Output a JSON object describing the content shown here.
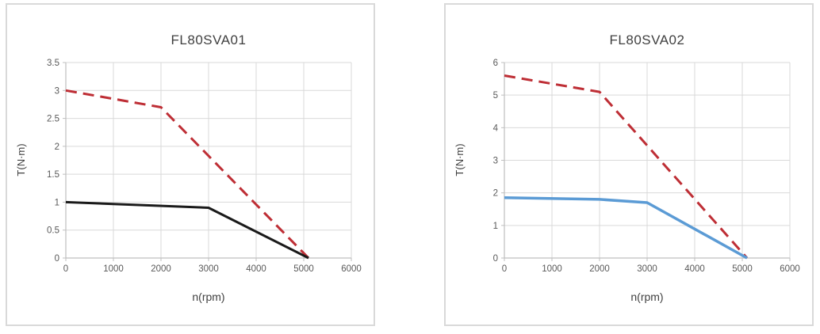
{
  "colors": {
    "background": "#ffffff",
    "card_border": "#d9d9d9",
    "grid": "#d9d9d9",
    "axis": "#bfbfbf",
    "tick_text": "#595959",
    "label_text": "#404040",
    "red_dashed": "#be2e35",
    "black_solid": "#1a1a1a",
    "blue_solid": "#5b9bd5"
  },
  "chart_data": [
    {
      "type": "line",
      "title": "FL80SVA01",
      "xlabel": "n(rpm)",
      "ylabel": "T(N·m)",
      "xlim": [
        0,
        6000
      ],
      "ylim": [
        0,
        3.5
      ],
      "xticks": [
        0,
        1000,
        2000,
        3000,
        4000,
        5000,
        6000
      ],
      "yticks": [
        0,
        0.5,
        1,
        1.5,
        2,
        2.5,
        3,
        3.5
      ],
      "grid": true,
      "legend": "none",
      "series": [
        {
          "name": "red-dashed-curve",
          "style": "dashed",
          "color": "#be2e35",
          "width": 3,
          "points": [
            [
              0,
              3.0
            ],
            [
              2000,
              2.7
            ],
            [
              5100,
              0
            ]
          ]
        },
        {
          "name": "black-solid-curve",
          "style": "solid",
          "color": "#1a1a1a",
          "width": 3,
          "points": [
            [
              0,
              1.0
            ],
            [
              3000,
              0.9
            ],
            [
              5100,
              0
            ]
          ]
        }
      ]
    },
    {
      "type": "line",
      "title": "FL80SVA02",
      "xlabel": "n(rpm)",
      "ylabel": "T(N·m)",
      "xlim": [
        0,
        6000
      ],
      "ylim": [
        0,
        6
      ],
      "xticks": [
        0,
        1000,
        2000,
        3000,
        4000,
        5000,
        6000
      ],
      "yticks": [
        0,
        1,
        2,
        3,
        4,
        5,
        6
      ],
      "grid": true,
      "legend": "none",
      "series": [
        {
          "name": "red-dashed-curve",
          "style": "dashed",
          "color": "#be2e35",
          "width": 3,
          "points": [
            [
              0,
              5.6
            ],
            [
              2000,
              5.1
            ],
            [
              5100,
              0
            ]
          ]
        },
        {
          "name": "blue-solid-curve",
          "style": "solid",
          "color": "#5b9bd5",
          "width": 3.5,
          "points": [
            [
              0,
              1.85
            ],
            [
              2000,
              1.8
            ],
            [
              3000,
              1.7
            ],
            [
              5100,
              0
            ]
          ]
        }
      ]
    }
  ]
}
